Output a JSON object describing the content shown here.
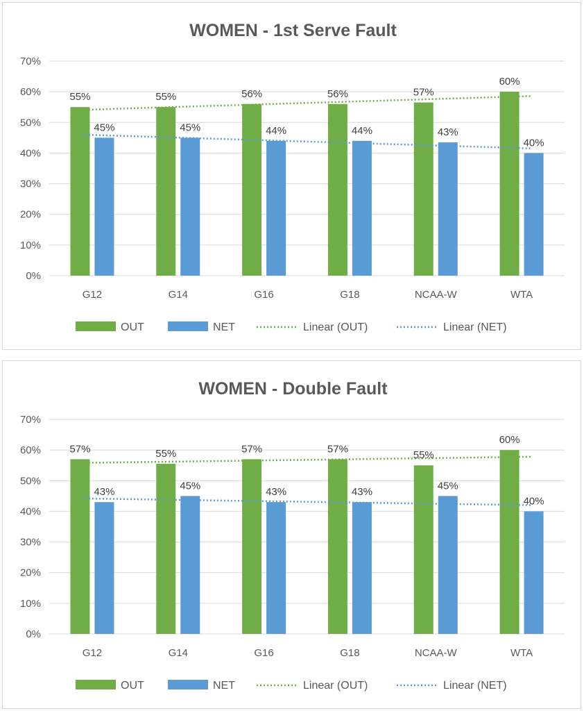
{
  "chart_data": [
    {
      "type": "bar",
      "title": "WOMEN - 1st Serve Fault",
      "categories": [
        "G12",
        "G14",
        "G16",
        "G18",
        "NCAA-W",
        "WTA"
      ],
      "ylim": [
        0,
        70
      ],
      "yticks": [
        "0%",
        "10%",
        "20%",
        "30%",
        "40%",
        "50%",
        "60%",
        "70%"
      ],
      "grid": true,
      "legend_position": "bottom",
      "series": [
        {
          "name": "OUT",
          "color": "#70ad47",
          "values": [
            55,
            55,
            56,
            56,
            56.5,
            60
          ],
          "labels": [
            "55%",
            "55%",
            "56%",
            "56%",
            "57%",
            "60%"
          ]
        },
        {
          "name": "NET",
          "color": "#5b9bd5",
          "values": [
            45,
            45,
            44,
            44,
            43.5,
            40
          ],
          "labels": [
            "45%",
            "45%",
            "44%",
            "44%",
            "43%",
            "40%"
          ]
        }
      ],
      "trendlines": [
        {
          "name": "Linear (OUT)",
          "color": "#70ad47",
          "values": [
            54.1,
            58.6
          ]
        },
        {
          "name": "Linear (NET)",
          "color": "#5b9bd5",
          "values": [
            46.0,
            41.5
          ]
        }
      ],
      "legend": [
        "OUT",
        "NET",
        "Linear (OUT)",
        "Linear (NET)"
      ]
    },
    {
      "type": "bar",
      "title": "WOMEN - Double Fault",
      "categories": [
        "G12",
        "G14",
        "G16",
        "G18",
        "NCAA-W",
        "WTA"
      ],
      "ylim": [
        0,
        70
      ],
      "yticks": [
        "0%",
        "10%",
        "20%",
        "30%",
        "40%",
        "50%",
        "60%",
        "70%"
      ],
      "grid": true,
      "legend_position": "bottom",
      "series": [
        {
          "name": "OUT",
          "color": "#70ad47",
          "values": [
            57,
            55.5,
            57,
            57,
            55,
            60
          ],
          "labels": [
            "57%",
            "55%",
            "57%",
            "57%",
            "55%",
            "60%"
          ]
        },
        {
          "name": "NET",
          "color": "#5b9bd5",
          "values": [
            43,
            45,
            43,
            43,
            45,
            40
          ],
          "labels": [
            "43%",
            "45%",
            "43%",
            "43%",
            "45%",
            "40%"
          ]
        }
      ],
      "trendlines": [
        {
          "name": "Linear (OUT)",
          "color": "#70ad47",
          "values": [
            55.8,
            57.8
          ]
        },
        {
          "name": "Linear (NET)",
          "color": "#5b9bd5",
          "values": [
            44.2,
            42.0
          ]
        }
      ],
      "legend": [
        "OUT",
        "NET",
        "Linear (OUT)",
        "Linear (NET)"
      ]
    }
  ]
}
